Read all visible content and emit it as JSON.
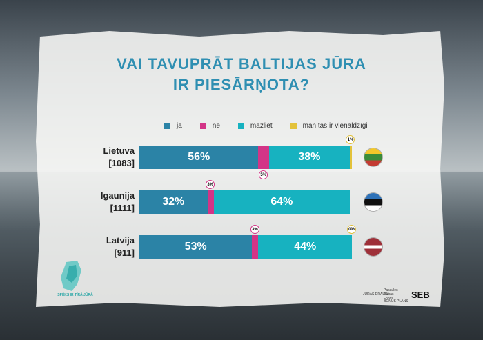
{
  "title_line1": "VAI TAVUPRĀT BALTIJAS JŪRA",
  "title_line2": "IR PIESĀRŅOTA?",
  "legend": [
    {
      "label": "jā",
      "color": "#2b83a6"
    },
    {
      "label": "nē",
      "color": "#d33587"
    },
    {
      "label": "mazliet",
      "color": "#17b2c0"
    },
    {
      "label": "man tas ir vienaldzīgi",
      "color": "#e3c23a"
    }
  ],
  "colors": {
    "ja": "#2b83a6",
    "ne": "#d33587",
    "mazliet": "#17b2c0",
    "vienaldzigi": "#e3c23a"
  },
  "chart_data": {
    "type": "bar",
    "orientation": "horizontal-stacked",
    "categories": [
      "Lietuva [1083]",
      "Igaunija [1111]",
      "Latvija [911]"
    ],
    "series": [
      {
        "name": "jā",
        "values": [
          56,
          32,
          53
        ]
      },
      {
        "name": "nē",
        "values": [
          5,
          3,
          3
        ]
      },
      {
        "name": "mazliet",
        "values": [
          38,
          64,
          44
        ]
      },
      {
        "name": "man tas ir vienaldzīgi",
        "values": [
          1,
          0,
          0
        ]
      }
    ]
  },
  "rows": [
    {
      "country": "Lietuva",
      "n": "[1083]",
      "ja": "56%",
      "ne": "5%",
      "mazliet": "38%",
      "vienaldzigi": "1%",
      "flag": "lithuania-flag"
    },
    {
      "country": "Igaunija",
      "n": "[1111]",
      "ja": "32%",
      "ne": "3%",
      "mazliet": "64%",
      "vienaldzigi": "",
      "flag": "estonia-flag"
    },
    {
      "country": "Latvija",
      "n": "[911]",
      "ja": "53%",
      "ne": "3%",
      "mazliet": "44%",
      "vienaldzigi": "0%",
      "flag": "latvia-flag"
    }
  ],
  "footer": {
    "logo_text": "SPĒKS IR TĪRĀ JŪRĀ",
    "partner1": "JŪRAS DRAUGI",
    "partner2": "Pasaules Dabas Fonds",
    "partner3": "BONUS PLANS",
    "seb": "SEB"
  }
}
